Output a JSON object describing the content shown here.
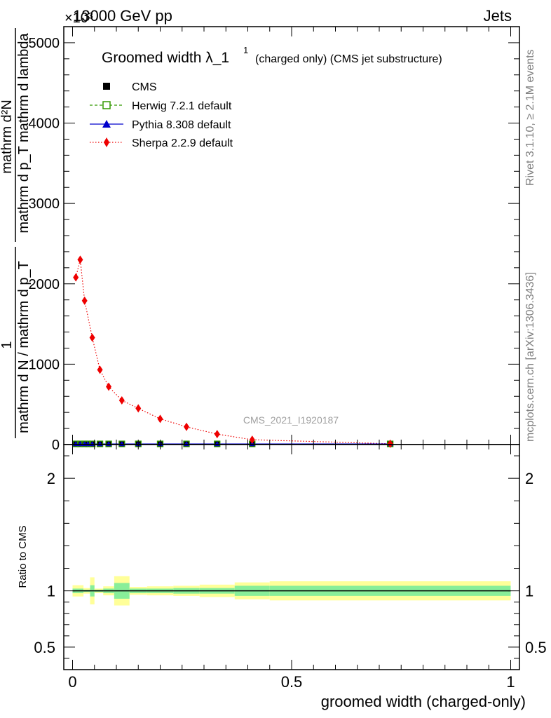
{
  "header": {
    "energy_label": "13000 GeV pp",
    "process_label": "Jets",
    "exponent_label": "×10³"
  },
  "side_labels": {
    "rivet": "Rivet 3.1.10, ≥ 2.1M events",
    "mcplots": "mcplots.cern.ch [arXiv:1306.3436]"
  },
  "colors": {
    "cms": "#000000",
    "herwig": "#339900",
    "pythia": "#0000cc",
    "sherpa": "#ee0000",
    "band_outer": "#ffff99",
    "band_inner": "#88ee99"
  },
  "chart_data": {
    "type": "line",
    "title_main": "Groomed width λ_1",
    "title_sup": "1",
    "title_rest": "(charged only) (CMS jet substructure)",
    "analysis_id": "CMS_2021_I1920187",
    "xlabel": "groomed width (charged-only)",
    "ylabel_main": {
      "numerator": "1",
      "denominator": "mathrm d N / mathrm d p_T",
      "factor_num": "mathrm d²N",
      "factor_den": "mathrm d p_T mathrm d lambda"
    },
    "ylabel_ratio": "Ratio to CMS",
    "xlim": [
      -0.02,
      1.02
    ],
    "ylim": [
      0,
      5200
    ],
    "ylim_ratio": [
      0.3,
      2.3
    ],
    "x_ticks": [
      0,
      0.5,
      1
    ],
    "x_tick_labels": [
      "0",
      "0.5",
      "1"
    ],
    "y_ticks": [
      0,
      1000,
      2000,
      3000,
      4000,
      5000
    ],
    "y_tick_labels": [
      "0",
      "1000",
      "2000",
      "3000",
      "4000",
      "5000"
    ],
    "ratio_ticks": [
      0.5,
      1,
      2
    ],
    "ratio_tick_labels": [
      "0.5",
      "1",
      "2"
    ],
    "legend": [
      "CMS",
      "Herwig 7.2.1 default",
      "Pythia 8.308 default",
      "Sherpa 2.2.9 default"
    ],
    "legend_position": "top-left",
    "grid": false,
    "series": [
      {
        "name": "CMS",
        "x": [
          0.0075,
          0.0175,
          0.0275,
          0.035,
          0.045,
          0.0625,
          0.0825,
          0.1125,
          0.15,
          0.2,
          0.26,
          0.33,
          0.41,
          0.725
        ],
        "y": [
          8,
          8,
          8,
          8,
          8,
          8,
          8,
          8,
          8,
          8,
          8,
          8,
          8,
          8
        ]
      },
      {
        "name": "Herwig 7.2.1 default",
        "x": [
          0.0075,
          0.0175,
          0.0275,
          0.035,
          0.045,
          0.0625,
          0.0825,
          0.1125,
          0.15,
          0.2,
          0.26,
          0.33,
          0.41,
          0.725
        ],
        "y": [
          8,
          8,
          8,
          8,
          8,
          8,
          8,
          8,
          8,
          8,
          8,
          8,
          8,
          8
        ]
      },
      {
        "name": "Pythia 8.308 default",
        "x": [
          0.0075,
          0.0175,
          0.0275,
          0.035,
          0.045,
          0.0625,
          0.0825,
          0.1125,
          0.15,
          0.2,
          0.26,
          0.33,
          0.41,
          0.725
        ],
        "y": [
          8,
          8,
          8,
          8,
          8,
          8,
          8,
          8,
          8,
          8,
          8,
          8,
          8,
          8
        ]
      },
      {
        "name": "Sherpa 2.2.9 default",
        "x": [
          0.0075,
          0.0175,
          0.0275,
          0.045,
          0.0625,
          0.0825,
          0.1125,
          0.15,
          0.2,
          0.26,
          0.33,
          0.41,
          0.725
        ],
        "y": [
          2080,
          2300,
          1790,
          1330,
          930,
          720,
          550,
          450,
          320,
          220,
          130,
          60,
          10
        ]
      }
    ],
    "ratio_bands": [
      {
        "x0": 0.0,
        "x1": 0.025,
        "inner": 0.02,
        "outer": 0.05
      },
      {
        "x0": 0.025,
        "x1": 0.04,
        "inner": 0.01,
        "outer": 0.025
      },
      {
        "x0": 0.04,
        "x1": 0.05,
        "inner": 0.05,
        "outer": 0.12
      },
      {
        "x0": 0.05,
        "x1": 0.07,
        "inner": 0.01,
        "outer": 0.02
      },
      {
        "x0": 0.07,
        "x1": 0.095,
        "inner": 0.02,
        "outer": 0.04
      },
      {
        "x0": 0.095,
        "x1": 0.13,
        "inner": 0.07,
        "outer": 0.13
      },
      {
        "x0": 0.13,
        "x1": 0.17,
        "inner": 0.02,
        "outer": 0.035
      },
      {
        "x0": 0.17,
        "x1": 0.23,
        "inner": 0.02,
        "outer": 0.04
      },
      {
        "x0": 0.23,
        "x1": 0.29,
        "inner": 0.025,
        "outer": 0.045
      },
      {
        "x0": 0.29,
        "x1": 0.37,
        "inner": 0.025,
        "outer": 0.055
      },
      {
        "x0": 0.37,
        "x1": 0.45,
        "inner": 0.045,
        "outer": 0.075
      },
      {
        "x0": 0.45,
        "x1": 1.0,
        "inner": 0.045,
        "outer": 0.085
      }
    ]
  }
}
